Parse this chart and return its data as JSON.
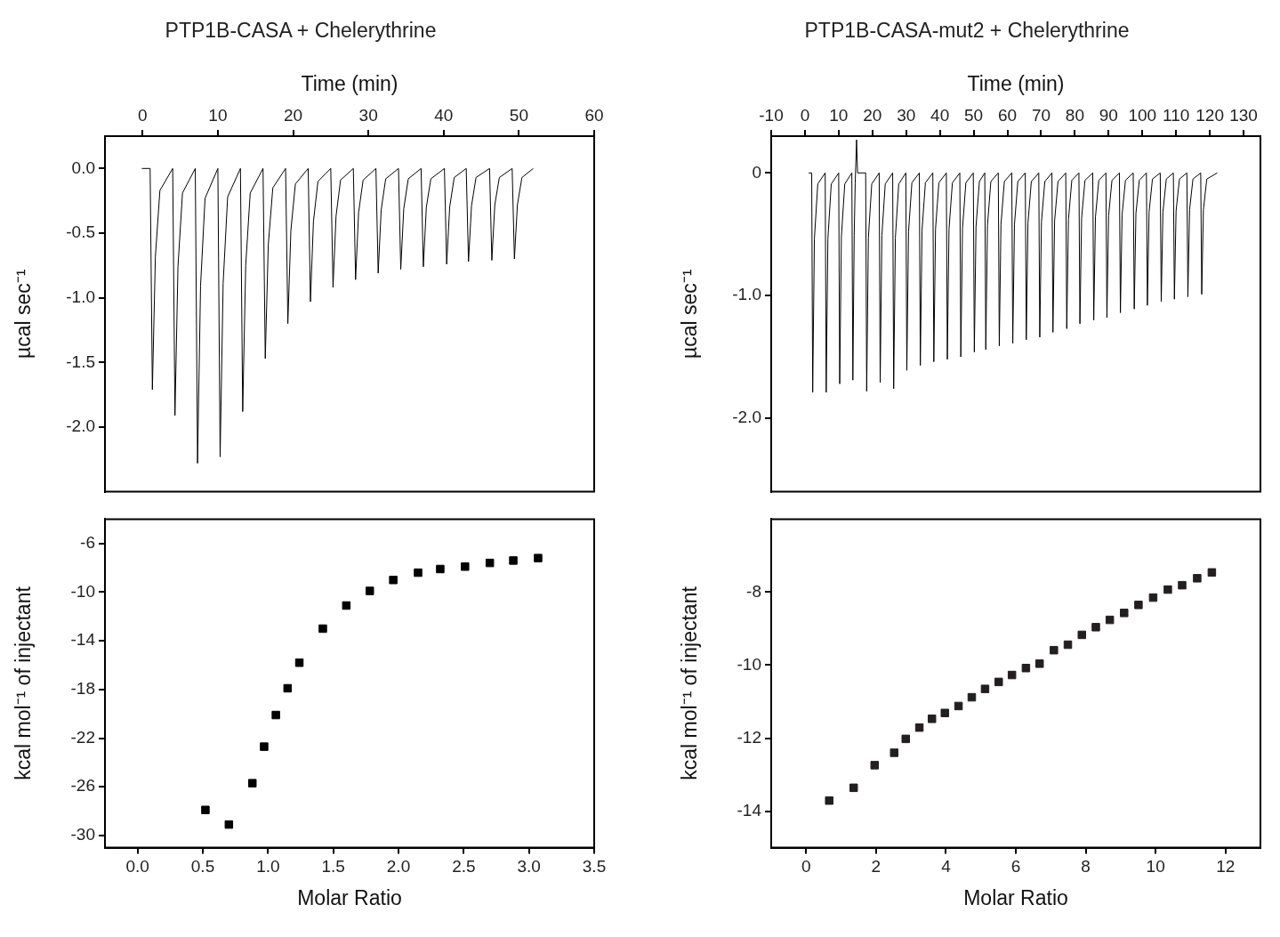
{
  "chart_data": [
    {
      "type": "line",
      "title": "PTP1B-CASA + Chelerythrine",
      "xlabel": "Time (min)",
      "ylabel": "µcal sec⁻¹",
      "xlim": [
        -5,
        60
      ],
      "ylim": [
        -2.5,
        0.25
      ],
      "xticks": [
        0,
        10,
        20,
        30,
        40,
        50,
        60
      ],
      "yticks": [
        {
          "value": 0,
          "label": "0.0"
        },
        {
          "value": -0.5,
          "label": "-0.5"
        },
        {
          "value": -1,
          "label": "-1.0"
        },
        {
          "value": -1.5,
          "label": "-1.5"
        },
        {
          "value": -2,
          "label": "-2.0"
        }
      ],
      "series": [
        {
          "color": "#000000",
          "x": [
            -0.1,
            1.0,
            1.3,
            1.7,
            2.3,
            4.0,
            4.3,
            4.7,
            5.3,
            7.0,
            7.3,
            7.7,
            8.3,
            10.0,
            10.3,
            10.7,
            11.3,
            13.0,
            13.3,
            13.7,
            14.3,
            16.0,
            16.3,
            16.7,
            17.3,
            19.0,
            19.3,
            19.7,
            20.3,
            22.0,
            22.3,
            22.7,
            23.3,
            25.0,
            25.3,
            25.7,
            26.3,
            28.0,
            28.3,
            28.7,
            29.3,
            31.0,
            31.3,
            31.7,
            32.3,
            34.0,
            34.3,
            34.7,
            35.3,
            37.0,
            37.3,
            37.7,
            38.3,
            40.1,
            40.4,
            40.8,
            41.4,
            43.0,
            43.3,
            43.7,
            44.3,
            46.1,
            46.4,
            46.8,
            47.4,
            49.1,
            49.4,
            49.8,
            50.4,
            51.9
          ],
          "values": [
            0,
            0,
            -1.71,
            -0.68,
            -0.17,
            0,
            -1.91,
            -0.76,
            -0.19,
            0,
            -2.28,
            -0.91,
            -0.23,
            0,
            -2.23,
            -0.89,
            -0.22,
            0,
            -1.88,
            -0.75,
            -0.19,
            0,
            -1.47,
            -0.59,
            -0.15,
            0,
            -1.2,
            -0.48,
            -0.12,
            0,
            -1.03,
            -0.41,
            -0.1,
            0,
            -0.92,
            -0.37,
            -0.09,
            0,
            -0.86,
            -0.34,
            -0.09,
            0,
            -0.81,
            -0.32,
            -0.08,
            0,
            -0.78,
            -0.31,
            -0.08,
            0,
            -0.76,
            -0.3,
            -0.08,
            0,
            -0.74,
            -0.3,
            -0.07,
            0,
            -0.72,
            -0.29,
            -0.07,
            0,
            -0.71,
            -0.28,
            -0.07,
            0,
            -0.7,
            -0.28,
            -0.07,
            0
          ]
        }
      ]
    },
    {
      "type": "scatter",
      "marker": "square",
      "xlabel": "Molar Ratio",
      "ylabel": "kcal mol⁻¹ of injectant",
      "xlim": [
        -0.25,
        3.5
      ],
      "ylim": [
        -31,
        -4
      ],
      "xticks": [
        {
          "value": 0,
          "label": "0.0"
        },
        {
          "value": 0.5,
          "label": "0.5"
        },
        {
          "value": 1,
          "label": "1.0"
        },
        {
          "value": 1.5,
          "label": "1.5"
        },
        {
          "value": 2,
          "label": "2.0"
        },
        {
          "value": 2.5,
          "label": "2.5"
        },
        {
          "value": 3,
          "label": "3.0"
        },
        {
          "value": 3.5,
          "label": "3.5"
        }
      ],
      "yticks": [
        -6,
        -10,
        -14,
        -18,
        -22,
        -26,
        -30
      ],
      "series": [
        {
          "color": "#000000",
          "x": [
            0.52,
            0.7,
            0.88,
            0.97,
            1.06,
            1.15,
            1.24,
            1.42,
            1.6,
            1.78,
            1.96,
            2.15,
            2.32,
            2.51,
            2.7,
            2.88,
            3.07
          ],
          "values": [
            -27.9,
            -29.1,
            -25.7,
            -22.7,
            -20.1,
            -17.9,
            -15.8,
            -13.0,
            -11.1,
            -9.9,
            -9.0,
            -8.4,
            -8.1,
            -7.9,
            -7.6,
            -7.4,
            -7.2
          ]
        }
      ]
    },
    {
      "type": "line",
      "title": "PTP1B-CASA-mut2 + Chelerythrine",
      "xlabel": "Time (min)",
      "ylabel": "µcal sec⁻¹",
      "xlim": [
        -10,
        135
      ],
      "ylim": [
        -2.6,
        0.3
      ],
      "xticks": [
        -10,
        0,
        10,
        20,
        30,
        40,
        50,
        60,
        70,
        80,
        90,
        100,
        110,
        120,
        130
      ],
      "yticks": [
        0,
        {
          "value": -1,
          "label": "-1.0"
        },
        {
          "value": -2,
          "label": "-2.0"
        }
      ],
      "series": [
        {
          "color": "#000000",
          "x": [
            1.1,
            2.0,
            2.3,
            2.8,
            3.8,
            6.0,
            6.3,
            6.8,
            7.8,
            10.0,
            10.3,
            10.8,
            11.8,
            13.9,
            14.2,
            14.6,
            14.9,
            15.3,
            15.6,
            18.0,
            18.3,
            18.8,
            19.8,
            22.0,
            22.3,
            22.8,
            23.8,
            26.0,
            26.3,
            26.8,
            27.8,
            29.9,
            30.2,
            30.7,
            31.7,
            33.9,
            34.2,
            34.7,
            35.7,
            37.9,
            38.2,
            38.7,
            39.7,
            41.9,
            42.2,
            42.7,
            43.7,
            45.9,
            46.2,
            46.7,
            47.7,
            49.9,
            50.2,
            50.7,
            51.7,
            53.3,
            53.6,
            54.1,
            55.1,
            57.3,
            57.6,
            58.1,
            59.1,
            61.3,
            61.6,
            62.1,
            63.1,
            65.3,
            65.6,
            66.1,
            67.1,
            69.3,
            69.6,
            70.1,
            71.1,
            73.2,
            73.5,
            74.0,
            75.0,
            77.3,
            77.6,
            78.1,
            79.1,
            81.2,
            81.5,
            82.0,
            83.0,
            85.3,
            85.6,
            86.1,
            87.1,
            89.2,
            89.5,
            90.0,
            91.0,
            93.2,
            93.5,
            94.0,
            95.0,
            97.3,
            97.6,
            98.1,
            99.1,
            101.2,
            101.5,
            102.0,
            103.0,
            105.3,
            105.6,
            106.1,
            107.1,
            109.2,
            109.5,
            110.0,
            111.0,
            113.2,
            113.5,
            114.0,
            115.0,
            117.3,
            117.6,
            118.1,
            119.1,
            122.2
          ],
          "values": [
            0,
            0,
            -1.79,
            -0.54,
            -0.09,
            0,
            -1.79,
            -0.54,
            -0.09,
            0,
            -1.72,
            -0.52,
            -0.09,
            0,
            -1.69,
            -0.51,
            -0.08,
            0.27,
            0,
            0,
            -1.78,
            -0.53,
            -0.09,
            0,
            -1.71,
            -0.51,
            -0.09,
            0,
            -1.76,
            -0.53,
            -0.09,
            0,
            -1.61,
            -0.48,
            -0.08,
            0,
            -1.57,
            -0.47,
            -0.08,
            0,
            -1.54,
            -0.46,
            -0.08,
            0,
            -1.52,
            -0.46,
            -0.08,
            0,
            -1.5,
            -0.45,
            -0.08,
            0,
            -1.46,
            -0.44,
            -0.07,
            0,
            -1.44,
            -0.43,
            -0.07,
            0,
            -1.41,
            -0.42,
            -0.07,
            0,
            -1.39,
            -0.42,
            -0.07,
            0,
            -1.36,
            -0.41,
            -0.07,
            0,
            -1.34,
            -0.4,
            -0.07,
            0,
            -1.3,
            -0.39,
            -0.07,
            0,
            -1.27,
            -0.38,
            -0.06,
            0,
            -1.23,
            -0.37,
            -0.06,
            0,
            -1.2,
            -0.36,
            -0.06,
            0,
            -1.18,
            -0.35,
            -0.06,
            0,
            -1.14,
            -0.34,
            -0.06,
            0,
            -1.11,
            -0.33,
            -0.06,
            0,
            -1.08,
            -0.32,
            -0.05,
            0,
            -1.05,
            -0.32,
            -0.05,
            0,
            -1.03,
            -0.31,
            -0.05,
            0,
            -1.01,
            -0.3,
            -0.05,
            0,
            -0.99,
            -0.3,
            -0.05,
            0
          ]
        }
      ]
    },
    {
      "type": "scatter",
      "marker": "square",
      "xlabel": "Molar Ratio",
      "ylabel": "kcal mol⁻¹ of injectant",
      "xlim": [
        -1,
        13
      ],
      "ylim": [
        -15,
        -6
      ],
      "xticks": [
        0,
        2,
        4,
        6,
        8,
        10,
        12
      ],
      "yticks": [
        -8,
        -10,
        -12,
        -14
      ],
      "series": [
        {
          "color": "#231f20",
          "x": [
            0.66,
            1.36,
            1.96,
            2.52,
            2.85,
            3.24,
            3.6,
            3.97,
            4.36,
            4.74,
            5.12,
            5.51,
            5.89,
            6.29,
            6.68,
            7.09,
            7.49,
            7.89,
            8.29,
            8.69,
            9.1,
            9.51,
            9.93,
            10.35,
            10.76,
            11.19,
            11.61
          ],
          "values": [
            -13.71,
            -13.36,
            -12.74,
            -12.4,
            -12.02,
            -11.71,
            -11.47,
            -11.31,
            -11.12,
            -10.88,
            -10.65,
            -10.46,
            -10.27,
            -10.08,
            -9.96,
            -9.59,
            -9.44,
            -9.17,
            -8.96,
            -8.76,
            -8.57,
            -8.35,
            -8.15,
            -7.93,
            -7.81,
            -7.62,
            -7.46
          ]
        }
      ]
    }
  ]
}
